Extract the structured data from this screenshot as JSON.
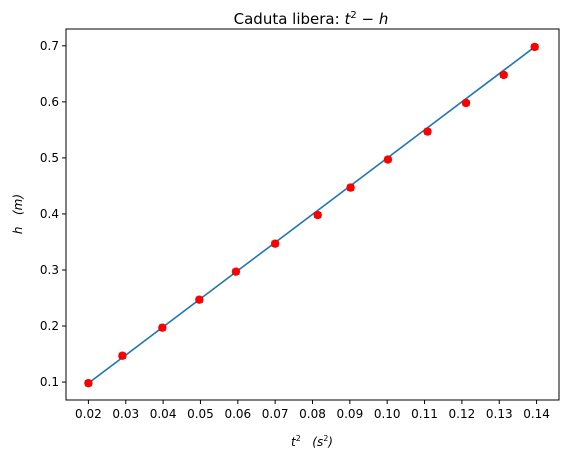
{
  "chart_data": {
    "type": "scatter",
    "title": {
      "main": "Caduta libera: ",
      "t": "t",
      "sup": "2",
      "rest": " − h"
    },
    "xlabel": {
      "t": "t",
      "sup": "2",
      "gap": "   ",
      "unit_open": "(s",
      "unit_sup": "2",
      "unit_close": ")"
    },
    "ylabel": {
      "h": "h",
      "gap": "   ",
      "unit": "(m)"
    },
    "xlim": [
      0.014,
      0.146
    ],
    "ylim": [
      0.068,
      0.73
    ],
    "xticks": [
      "0.02",
      "0.03",
      "0.04",
      "0.05",
      "0.06",
      "0.07",
      "0.08",
      "0.09",
      "0.10",
      "0.11",
      "0.12",
      "0.13",
      "0.14"
    ],
    "yticks": [
      "0.1",
      "0.2",
      "0.3",
      "0.4",
      "0.5",
      "0.6",
      "0.7"
    ],
    "grid": false,
    "series": [
      {
        "kind": "points-with-errorbars",
        "color": "#ff0000",
        "errorbar_color": "#000000",
        "x_error": 0.0008,
        "x": [
          0.02,
          0.0291,
          0.0398,
          0.0497,
          0.0595,
          0.07,
          0.0814,
          0.0902,
          0.1002,
          0.1108,
          0.1211,
          0.1312,
          0.1395
        ],
        "y": [
          0.098,
          0.147,
          0.197,
          0.247,
          0.297,
          0.347,
          0.398,
          0.447,
          0.497,
          0.547,
          0.598,
          0.648,
          0.698
        ]
      },
      {
        "kind": "fit-line",
        "color": "#1f77b4",
        "x": [
          0.02,
          0.1395
        ],
        "y": [
          0.098,
          0.698
        ]
      }
    ]
  }
}
